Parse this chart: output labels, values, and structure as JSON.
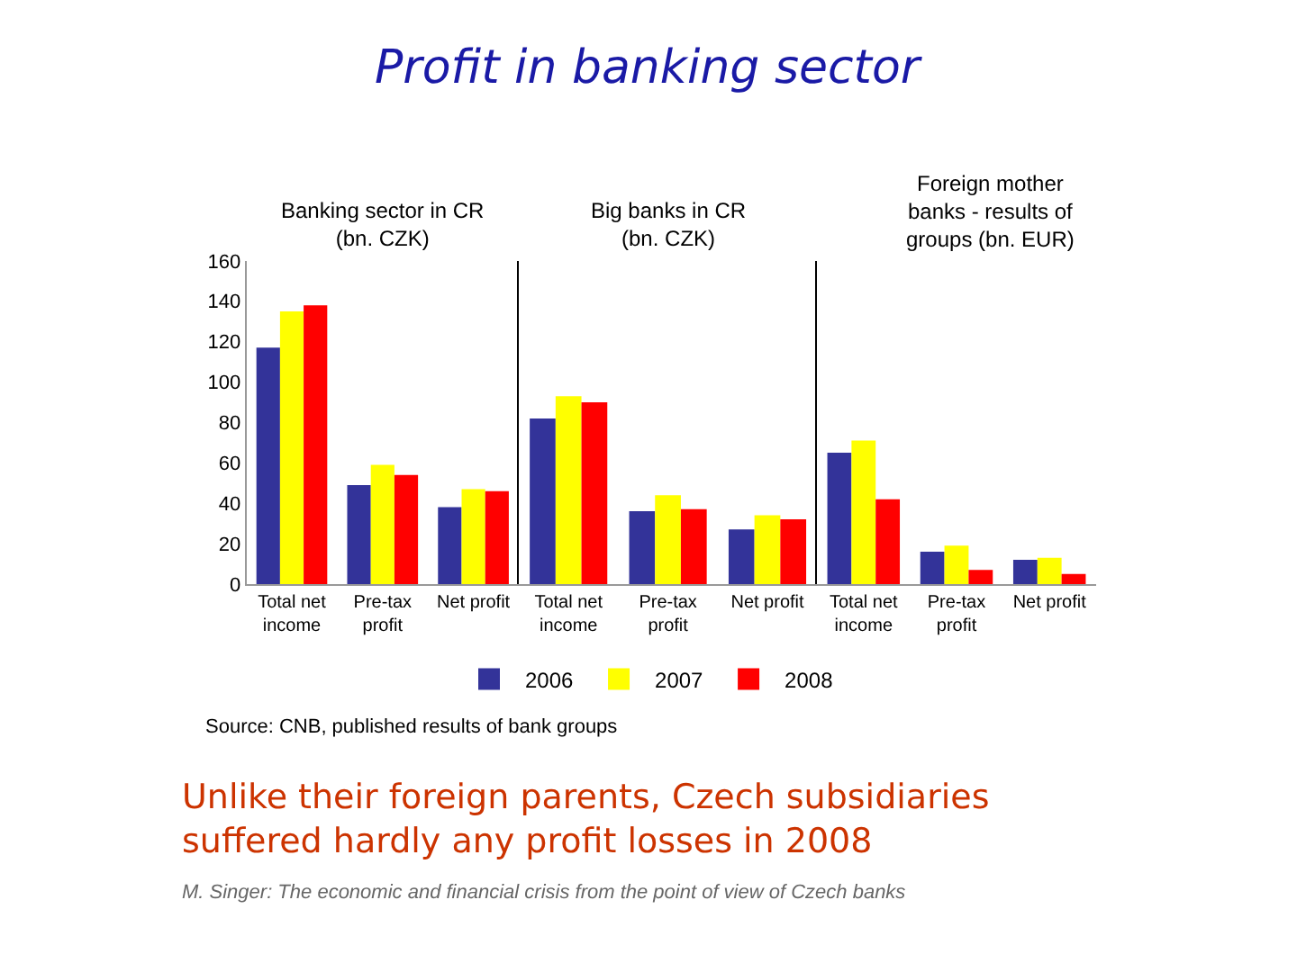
{
  "chart_data": [
    {
      "type": "bar",
      "title": "Banking sector in CR\n(bn. CZK)",
      "categories": [
        "Total net income",
        "Pre-tax profit",
        "Net profit"
      ],
      "series": [
        {
          "name": "2006",
          "color": "#333399",
          "values": [
            117,
            49,
            38
          ]
        },
        {
          "name": "2007",
          "color": "#ffff00",
          "values": [
            135,
            59,
            47
          ]
        },
        {
          "name": "2008",
          "color": "#ff0000",
          "values": [
            138,
            54,
            46
          ]
        }
      ],
      "ylim": [
        0,
        160
      ],
      "yticks": [
        0,
        20,
        40,
        60,
        80,
        100,
        120,
        140,
        160
      ],
      "legend": "bottom",
      "annotations": [
        "Profit in banking sector",
        "Source: CNB, published results of bank groups",
        "Unlike their foreign parents, Czech subsidiaries suffered hardly any profit losses in 2008",
        "M. Singer: The economic and financial crisis from the point of view of Czech banks"
      ]
    },
    {
      "type": "bar",
      "title": "Big banks in CR\n(bn. CZK)",
      "categories": [
        "Total net income",
        "Pre-tax profit",
        "Net profit"
      ],
      "series": [
        {
          "name": "2006",
          "color": "#333399",
          "values": [
            82,
            36,
            27
          ]
        },
        {
          "name": "2007",
          "color": "#ffff00",
          "values": [
            93,
            44,
            34
          ]
        },
        {
          "name": "2008",
          "color": "#ff0000",
          "values": [
            90,
            37,
            32
          ]
        }
      ],
      "ylim": [
        0,
        160
      ],
      "yticks": [
        0,
        20,
        40,
        60,
        80,
        100,
        120,
        140,
        160
      ],
      "tick_labels": "x",
      "legend": false
    },
    {
      "type": "bar",
      "title": "Foreign mother\nbanks - results of\ngroups (bn. EUR)",
      "categories": [
        "Total net income",
        "Pre-tax profit",
        "Net profit"
      ],
      "series": [
        {
          "name": "2006",
          "color": "#333399",
          "values": [
            65,
            16,
            12
          ]
        },
        {
          "name": "2007",
          "color": "#ffff00",
          "values": [
            71,
            19,
            13
          ]
        },
        {
          "name": "2008",
          "color": "#ff0000",
          "values": [
            42,
            7,
            5
          ]
        }
      ],
      "ylim": [
        0,
        160
      ],
      "yticks": [
        0,
        20,
        40,
        60,
        80,
        100,
        120,
        140,
        160
      ],
      "tick_labels": "x",
      "legend": false
    }
  ]
}
